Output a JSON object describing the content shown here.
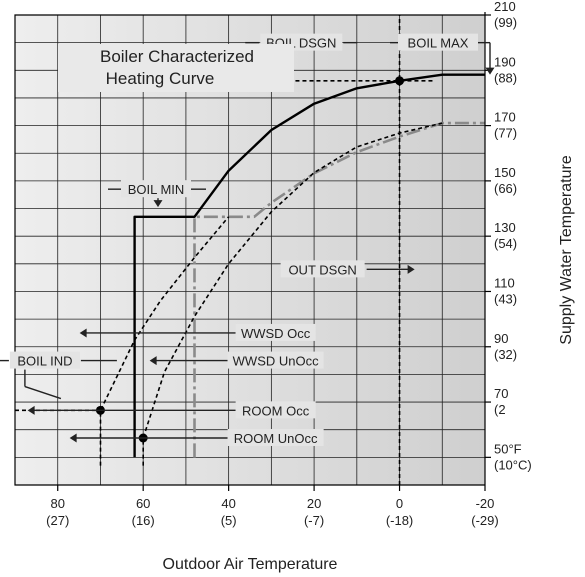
{
  "chart_data": {
    "type": "line",
    "title": [
      "Boiler Characterized",
      "Heating Curve"
    ],
    "xlabel": "Outdoor Air Temperature",
    "ylabel": "Supply Water Temperature",
    "x_unit_note": "°F with °C in parentheses; axis reversed (warm on left)",
    "xlim": [
      90,
      -20
    ],
    "ylim": [
      40,
      210
    ],
    "x_ticks": [
      {
        "value": 80,
        "f": "80",
        "c": "(27)"
      },
      {
        "value": 60,
        "f": "60",
        "c": "(16)"
      },
      {
        "value": 40,
        "f": "40",
        "c": "(5)"
      },
      {
        "value": 20,
        "f": "20",
        "c": "(-7)"
      },
      {
        "value": 0,
        "f": "0",
        "c": "(-18)"
      },
      {
        "value": -20,
        "f": "-20",
        "c": "(-29)"
      }
    ],
    "y_ticks": [
      {
        "value": 210,
        "f": "210",
        "c": "(99)"
      },
      {
        "value": 190,
        "f": "190",
        "c": "(88)"
      },
      {
        "value": 170,
        "f": "170",
        "c": "(77)"
      },
      {
        "value": 150,
        "f": "150",
        "c": "(66)"
      },
      {
        "value": 130,
        "f": "130",
        "c": "(54)"
      },
      {
        "value": 110,
        "f": "110",
        "c": "(43)"
      },
      {
        "value": 90,
        "f": "90",
        "c": "(32)"
      },
      {
        "value": 70,
        "f": "70",
        "c": "(2"
      },
      {
        "value": 50,
        "f": "50°F",
        "c": "(10°C)"
      }
    ],
    "grid": true,
    "background": "#dcdcdc",
    "series": [
      {
        "style": "solid-black",
        "color": "#000000",
        "points": [
          [
            62,
            50
          ],
          [
            62,
            137
          ],
          [
            48,
            137
          ],
          [
            40,
            153.7
          ],
          [
            30,
            168.4
          ],
          [
            20,
            177.9
          ],
          [
            10,
            183.5
          ],
          [
            0,
            186.2
          ],
          [
            -10,
            188.4
          ],
          [
            -20,
            188.4
          ]
        ]
      },
      {
        "style": "dashdot-gray",
        "color": "#8a8a8a",
        "points": [
          [
            48,
            50
          ],
          [
            48,
            137
          ],
          [
            34,
            137
          ],
          [
            30,
            142.1
          ],
          [
            20,
            152.7
          ],
          [
            10,
            160.4
          ],
          [
            0,
            166.0
          ],
          [
            -10,
            170.9
          ],
          [
            -20,
            170.9
          ]
        ]
      },
      {
        "style": "dashed-black",
        "color": "#000000",
        "points": [
          [
            70,
            47
          ],
          [
            70,
            67
          ],
          [
            62,
            92.4
          ],
          [
            56,
            106.6
          ],
          [
            48,
            122.3
          ],
          [
            40,
            137
          ]
        ]
      },
      {
        "style": "dashed-black",
        "color": "#000000",
        "points": [
          [
            60,
            47
          ],
          [
            60,
            57
          ],
          [
            55,
            80.9
          ],
          [
            48,
            101
          ],
          [
            40,
            120
          ],
          [
            30,
            138.8
          ],
          [
            20,
            153
          ],
          [
            10,
            162.3
          ],
          [
            0,
            167.3
          ],
          [
            -10,
            170.9
          ]
        ]
      }
    ],
    "points": [
      {
        "name": "design-point",
        "x": 0,
        "y": 186.2
      },
      {
        "name": "boil-ind-point",
        "x": 70,
        "y": 67
      },
      {
        "name": "room-unocc-point",
        "x": 60,
        "y": 57
      }
    ],
    "reference_lines": [
      {
        "name": "boil-dsgn-line",
        "y": 186.2,
        "x_from": 26,
        "x_to": -8
      },
      {
        "name": "out-dsgn-line",
        "x": 0,
        "y_from": 40,
        "y_to": 210
      },
      {
        "name": "boil-ind-line",
        "y": 67,
        "x_from": 90,
        "x_to": 70
      }
    ],
    "annotations": [
      {
        "id": "boil-dsgn",
        "text": "BOIL DSGN",
        "x": 23,
        "y": 200
      },
      {
        "id": "boil-max",
        "text": "BOIL MAX",
        "x": -9,
        "y": 200
      },
      {
        "id": "boil-min",
        "text": "BOIL MIN",
        "x": 57,
        "y": 147
      },
      {
        "id": "out-dsgn",
        "text": "OUT DSGN",
        "x": 18,
        "y": 118
      },
      {
        "id": "wwsd-occ",
        "text": "WWSD Occ",
        "x": 29,
        "y": 95
      },
      {
        "id": "wwsd-unocc",
        "text": "WWSD UnOcc",
        "x": 29,
        "y": 85
      },
      {
        "id": "boil-ind",
        "text": "BOIL IND",
        "x": 83,
        "y": 85
      },
      {
        "id": "room-occ",
        "text": "ROOM Occ",
        "x": 29,
        "y": 67
      },
      {
        "id": "room-unocc",
        "text": "ROOM UnOcc",
        "x": 29,
        "y": 57
      }
    ]
  }
}
